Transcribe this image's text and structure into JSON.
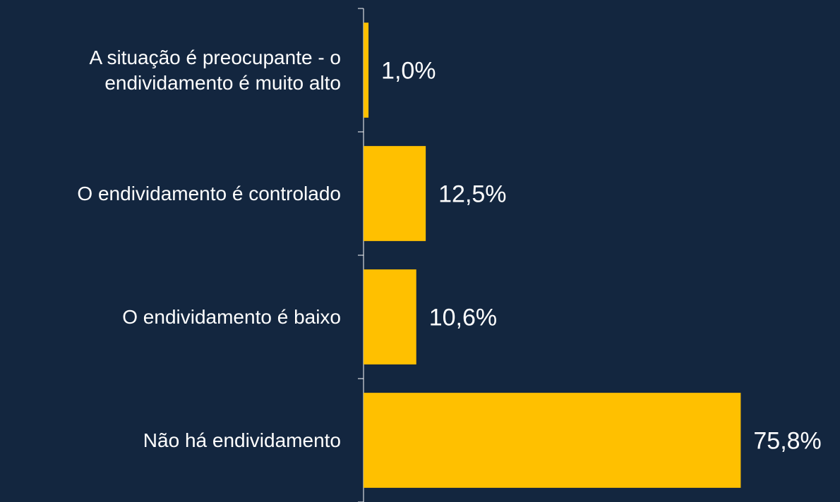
{
  "chart_data": {
    "type": "bar",
    "orientation": "horizontal",
    "categories": [
      "A situação é preocupante - o endividamento é muito alto",
      "O endividamento é controlado",
      "O endividamento é baixo",
      "Não há endividamento"
    ],
    "values": [
      1.0,
      12.5,
      10.6,
      75.8
    ],
    "value_labels": [
      "1,0%",
      "12,5%",
      "10,6%",
      "75,8%"
    ],
    "color": "#ffc000",
    "xlim": [
      0,
      80
    ]
  }
}
